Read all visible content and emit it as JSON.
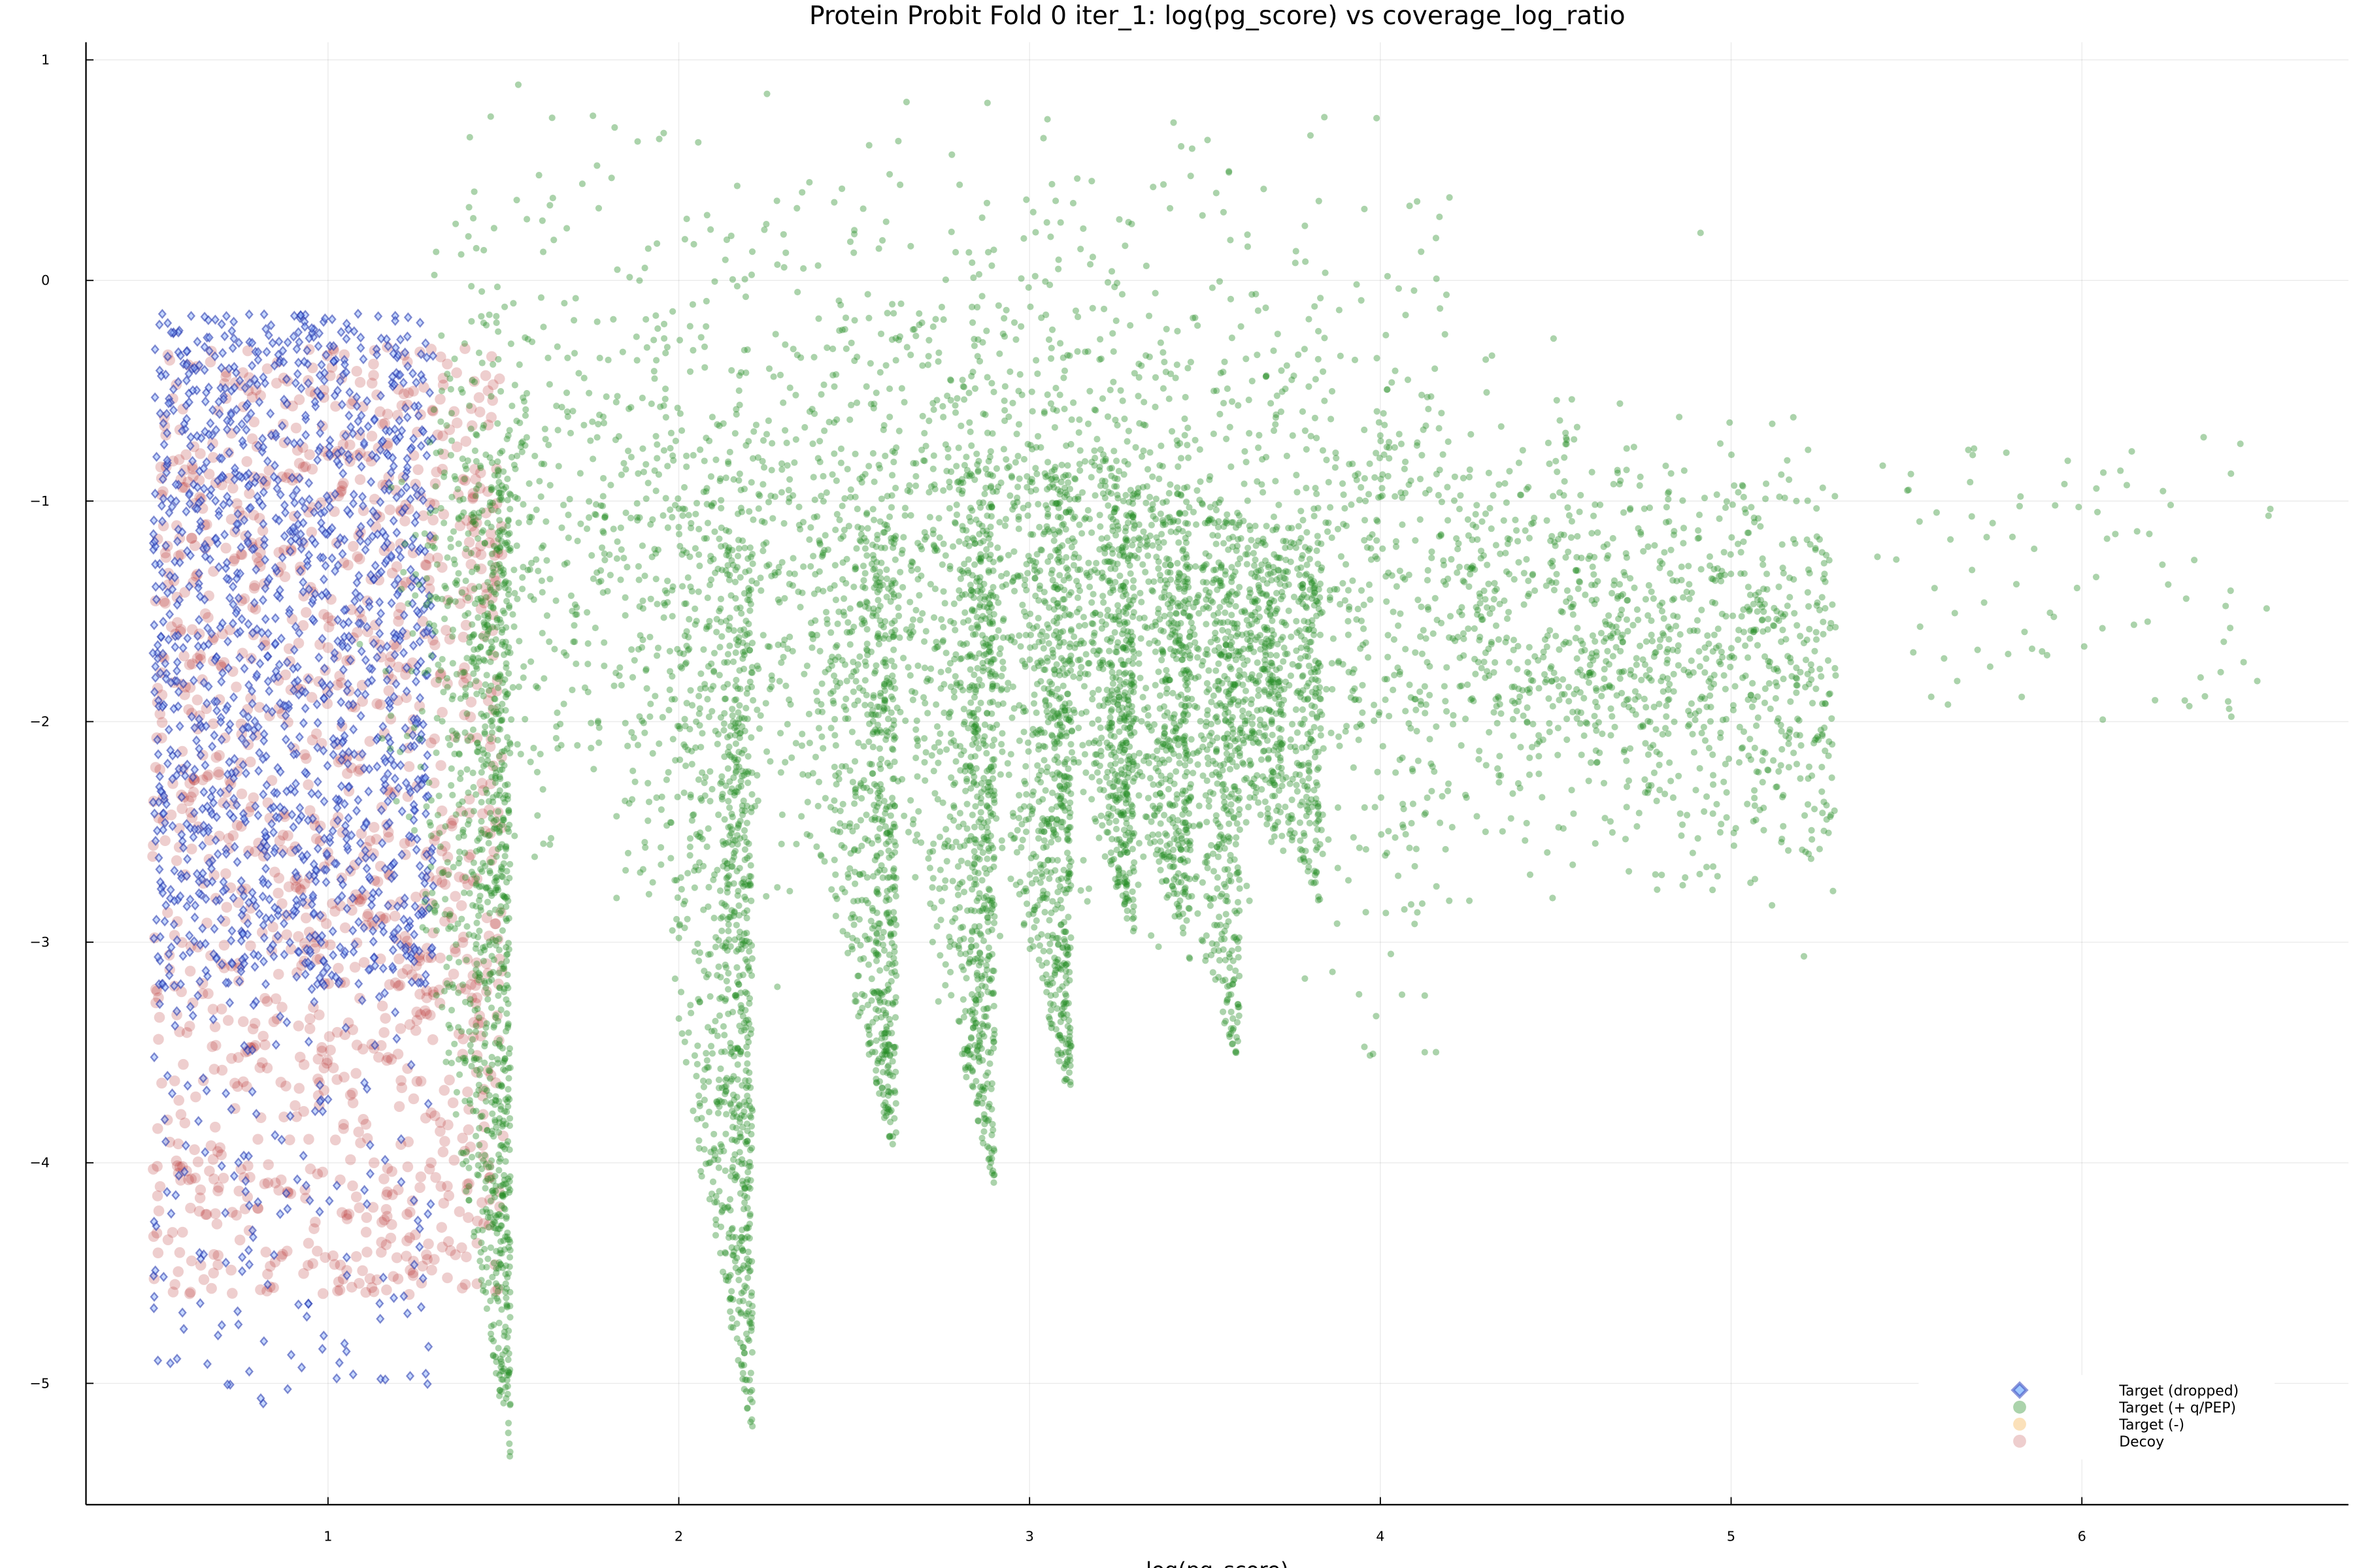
{
  "chart_data": {
    "type": "scatter",
    "title": "Protein Probit Fold 0 iter_1: log(pg_score) vs coverage_log_ratio",
    "xlabel": "log(pg_score)",
    "ylabel": "",
    "xlim": [
      0.31,
      6.76
    ],
    "ylim": [
      -5.55,
      1.08
    ],
    "xticks": [
      1,
      2,
      3,
      4,
      5,
      6
    ],
    "yticks": [
      1,
      0,
      -1,
      -2,
      -3,
      -4,
      -5
    ],
    "grid": true,
    "legend_position": "bottom-right",
    "series": [
      {
        "name": "Target (dropped)",
        "marker": "diamond",
        "color": "#2233aa",
        "point_clusters": [
          {
            "x": [
              0.5,
              1.3
            ],
            "y": [
              -3.2,
              -0.15
            ],
            "count": 1400
          },
          {
            "x": [
              0.5,
              1.3
            ],
            "y": [
              -5.1,
              -3.2
            ],
            "count": 160
          }
        ]
      },
      {
        "name": "Target (+ q/PEP)",
        "marker": "circle",
        "color": "#228b22",
        "point_clusters": [
          {
            "x_center": 1.52,
            "y": [
              -5.35,
              -0.7
            ],
            "count": 900
          },
          {
            "x_center": 2.21,
            "y": [
              -5.25,
              -1.2
            ],
            "count": 800
          },
          {
            "x_center": 2.62,
            "y": [
              -4.0,
              -1.0
            ],
            "count": 600
          },
          {
            "x_center": 2.9,
            "y": [
              -4.15,
              -0.8
            ],
            "count": 650
          },
          {
            "x_center": 3.12,
            "y": [
              -3.75,
              -0.8
            ],
            "count": 600
          },
          {
            "x_center": 3.3,
            "y": [
              -3.0,
              -0.8
            ],
            "count": 450
          },
          {
            "x_center": 3.46,
            "y": [
              -3.1,
              -0.9
            ],
            "count": 400
          },
          {
            "x_center": 3.6,
            "y": [
              -3.6,
              -1.0
            ],
            "count": 380
          },
          {
            "x_center": 3.72,
            "y": [
              -2.6,
              -1.2
            ],
            "count": 250
          },
          {
            "x_center": 3.83,
            "y": [
              -2.85,
              -1.1
            ],
            "count": 250
          },
          {
            "x": [
              1.3,
              5.3
            ],
            "y": [
              -4.5,
              0.9
            ],
            "count": 3600
          },
          {
            "x": [
              5.4,
              6.55
            ],
            "y": [
              -2.0,
              -0.7
            ],
            "count": 90
          }
        ]
      },
      {
        "name": "Target (-)",
        "marker": "circle",
        "color": "#f5b04a",
        "point_clusters": []
      },
      {
        "name": "Decoy",
        "marker": "circle",
        "color": "#b22222",
        "point_clusters": [
          {
            "x": [
              0.5,
              1.5
            ],
            "y": [
              -4.6,
              -0.3
            ],
            "count": 1300
          }
        ]
      }
    ]
  }
}
